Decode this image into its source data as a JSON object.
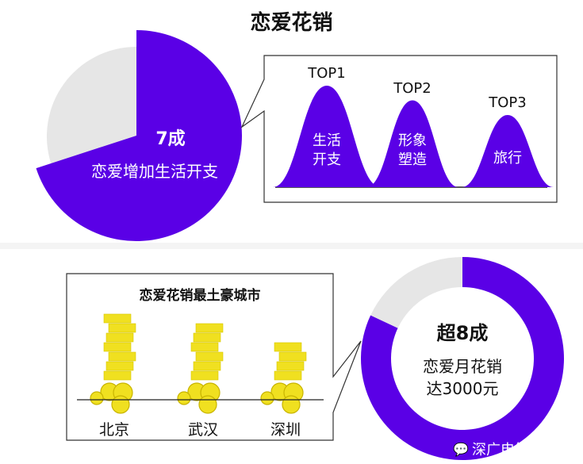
{
  "title": "恋爱花销",
  "colors": {
    "accent": "#5a00e6",
    "gray": "#e6e6e6",
    "gold": "#f0e020"
  },
  "chart_data": [
    {
      "type": "pie",
      "slices": [
        {
          "label": "恋爱增加生活开支",
          "value": 70,
          "display": "7成"
        },
        {
          "label": "",
          "value": 30
        }
      ],
      "label_value": "7成",
      "label_text": "恋爱增加生活开支"
    },
    {
      "type": "bar",
      "style": "bell-curves",
      "categories": [
        "TOP1",
        "TOP2",
        "TOP3"
      ],
      "labels": [
        "生活\n开支",
        "形象\n塑造",
        "旅行"
      ],
      "ranks": [
        1,
        2,
        3
      ]
    },
    {
      "type": "bar",
      "style": "coin-stacks",
      "title": "恋爱花销最土豪城市",
      "categories": [
        "北京",
        "武汉",
        "深圳"
      ],
      "ranks": [
        1,
        2,
        3
      ]
    },
    {
      "type": "pie",
      "style": "donut",
      "slices": [
        {
          "label": "恋爱月花销达3000元",
          "value": 82,
          "display": "超8成"
        },
        {
          "label": "",
          "value": 18
        }
      ],
      "label_value": "超8成",
      "label_line1": "恋爱月花销",
      "label_line2": "达3000元"
    }
  ],
  "watermark": {
    "icon": "wechat-icon",
    "text": "深广电第一现场"
  }
}
